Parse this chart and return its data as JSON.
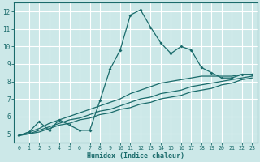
{
  "title": "",
  "xlabel": "Humidex (Indice chaleur)",
  "bg_color": "#cce8e8",
  "grid_color": "#ffffff",
  "line_color": "#1a6b6b",
  "x_data": [
    0,
    1,
    2,
    3,
    4,
    5,
    6,
    7,
    8,
    9,
    10,
    11,
    12,
    13,
    14,
    15,
    16,
    17,
    18,
    19,
    20,
    21,
    22,
    23
  ],
  "y_main": [
    4.9,
    5.1,
    5.7,
    5.2,
    5.8,
    5.5,
    5.2,
    5.2,
    6.9,
    8.7,
    9.8,
    11.8,
    12.1,
    11.1,
    10.2,
    9.6,
    10.0,
    9.8,
    8.8,
    8.5,
    8.2,
    8.2,
    8.4,
    8.4
  ],
  "y_line2": [
    4.9,
    5.1,
    5.3,
    5.6,
    5.8,
    6.0,
    6.2,
    6.4,
    6.6,
    6.8,
    7.0,
    7.3,
    7.5,
    7.7,
    7.9,
    8.0,
    8.1,
    8.2,
    8.3,
    8.3,
    8.3,
    8.3,
    8.4,
    8.4
  ],
  "y_line3": [
    4.9,
    5.0,
    5.2,
    5.4,
    5.6,
    5.8,
    5.9,
    6.1,
    6.3,
    6.4,
    6.6,
    6.8,
    7.0,
    7.1,
    7.3,
    7.4,
    7.5,
    7.7,
    7.8,
    7.9,
    8.0,
    8.1,
    8.2,
    8.3
  ],
  "y_line4": [
    4.9,
    5.0,
    5.1,
    5.3,
    5.5,
    5.6,
    5.8,
    5.9,
    6.1,
    6.2,
    6.4,
    6.5,
    6.7,
    6.8,
    7.0,
    7.1,
    7.2,
    7.4,
    7.5,
    7.6,
    7.8,
    7.9,
    8.1,
    8.2
  ],
  "ylim": [
    4.5,
    12.5
  ],
  "xlim": [
    -0.5,
    23.5
  ],
  "yticks": [
    5,
    6,
    7,
    8,
    9,
    10,
    11,
    12
  ],
  "xticks": [
    0,
    1,
    2,
    3,
    4,
    5,
    6,
    7,
    8,
    9,
    10,
    11,
    12,
    13,
    14,
    15,
    16,
    17,
    18,
    19,
    20,
    21,
    22,
    23
  ]
}
